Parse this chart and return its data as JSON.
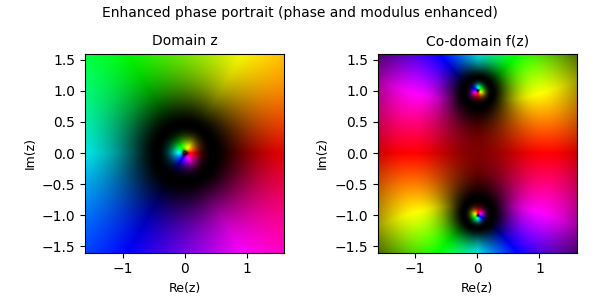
{
  "title": "Enhanced phase portrait (phase and modulus enhanced)",
  "left_title": "Domain z",
  "right_title": "Co-domain f(z)",
  "xlabel": "Re(z)",
  "ylabel": "Im(z)",
  "xlim": [
    -1.6,
    1.6
  ],
  "ylim": [
    -1.6,
    1.6
  ],
  "xticks": [
    -1,
    0,
    1
  ],
  "yticks": [
    -1.5,
    -1.0,
    -0.5,
    0.0,
    0.5,
    1.0,
    1.5
  ],
  "n_points": 500,
  "log_scale_factor": 2.0
}
